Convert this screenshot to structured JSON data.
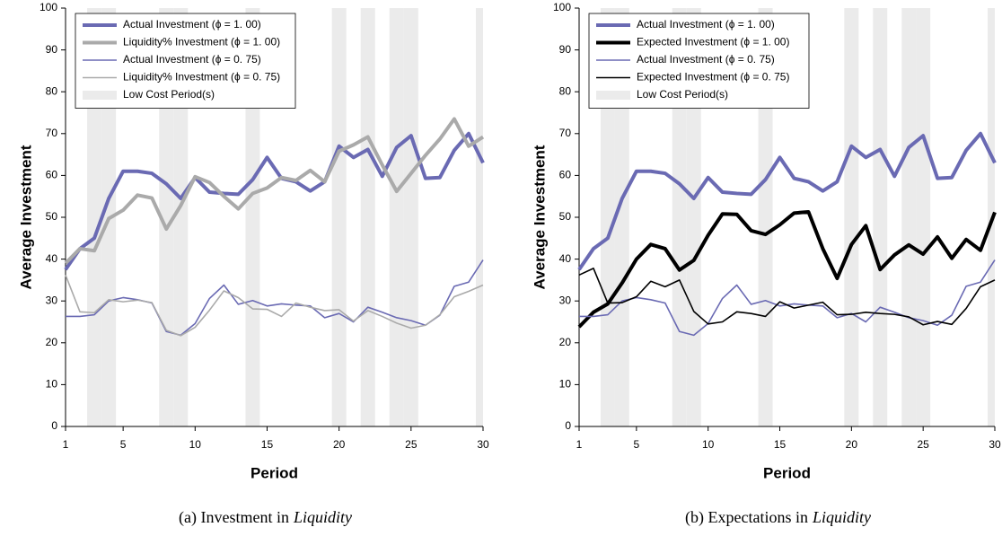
{
  "chart_data": [
    {
      "type": "line",
      "caption": {
        "text": "(a) Investment in",
        "emphasis": "Liquidity"
      },
      "x_label": "Period",
      "y_label": "Average Investment",
      "x": [
        1,
        2,
        3,
        4,
        5,
        6,
        7,
        8,
        9,
        10,
        11,
        12,
        13,
        14,
        15,
        16,
        17,
        18,
        19,
        20,
        21,
        22,
        23,
        24,
        25,
        26,
        27,
        28,
        29,
        30
      ],
      "xlim": [
        1,
        30
      ],
      "xticks": [
        1,
        5,
        10,
        15,
        20,
        25,
        30
      ],
      "ylim": [
        0,
        100
      ],
      "yticks": [
        0,
        10,
        20,
        30,
        40,
        50,
        60,
        70,
        80,
        90,
        100
      ],
      "legend": "upper left",
      "low_cost_label": "Low Cost Period(s)",
      "low_cost_color": "#ebebeb",
      "low_cost_periods": [
        3,
        4,
        8,
        9,
        14,
        20,
        22,
        24,
        25,
        30
      ],
      "series": [
        {
          "name": "Actual Investment (ϕ = 1. 00)",
          "color": "#6a6ab3",
          "line_width": 4,
          "values": [
            37.5,
            42.5,
            45,
            54.5,
            61,
            61,
            60.5,
            58,
            54.5,
            59.5,
            56,
            55.7,
            55.5,
            59,
            64.3,
            59.3,
            58.5,
            56.3,
            58.5,
            67,
            64.3,
            66.2,
            59.8,
            66.7,
            69.5,
            59.3,
            59.5,
            66,
            70,
            63
          ]
        },
        {
          "name": "Liquidity% Investment (ϕ = 1. 00)",
          "color": "#aaaaaa",
          "line_width": 4,
          "values": [
            39,
            42.5,
            42,
            49.7,
            51.7,
            55.3,
            54.6,
            47.2,
            52.8,
            59.7,
            58.3,
            55,
            52,
            55.7,
            57,
            59.5,
            58.8,
            61.2,
            58.5,
            65.8,
            67.3,
            69.2,
            62.5,
            56.2,
            60.5,
            64.8,
            68.7,
            73.5,
            67,
            69.2
          ]
        },
        {
          "name": "Actual Investment (ϕ = 0. 75)",
          "color": "#6a6ab3",
          "line_width": 1.6,
          "values": [
            26.3,
            26.3,
            26.7,
            30,
            30.8,
            30.3,
            29.5,
            22.7,
            21.8,
            24.6,
            30.6,
            33.8,
            29.2,
            30.1,
            28.8,
            29.3,
            29,
            28.8,
            26,
            27,
            25,
            28.5,
            27.3,
            26,
            25.3,
            24.2,
            26.6,
            33.5,
            34.5,
            39.8
          ]
        },
        {
          "name": "Liquidity% Investment (ϕ = 0. 75)",
          "color": "#aaaaaa",
          "line_width": 1.6,
          "values": [
            36.2,
            27.4,
            27.2,
            30.3,
            29.8,
            30.2,
            29.6,
            23,
            21.7,
            23.7,
            27.8,
            32.4,
            30.8,
            28.1,
            28,
            26.3,
            29.5,
            28.5,
            27.7,
            27.9,
            25.2,
            27.7,
            26.3,
            24.7,
            23.5,
            24.2,
            26.7,
            31,
            32.3,
            33.8
          ]
        }
      ]
    },
    {
      "type": "line",
      "caption": {
        "text": "(b) Expectations in",
        "emphasis": "Liquidity"
      },
      "x_label": "Period",
      "y_label": "Average Investment",
      "x": [
        1,
        2,
        3,
        4,
        5,
        6,
        7,
        8,
        9,
        10,
        11,
        12,
        13,
        14,
        15,
        16,
        17,
        18,
        19,
        20,
        21,
        22,
        23,
        24,
        25,
        26,
        27,
        28,
        29,
        30
      ],
      "xlim": [
        1,
        30
      ],
      "xticks": [
        1,
        5,
        10,
        15,
        20,
        25,
        30
      ],
      "ylim": [
        0,
        100
      ],
      "yticks": [
        0,
        10,
        20,
        30,
        40,
        50,
        60,
        70,
        80,
        90,
        100
      ],
      "legend": "upper left",
      "low_cost_label": "Low Cost Period(s)",
      "low_cost_color": "#ebebeb",
      "low_cost_periods": [
        3,
        4,
        8,
        9,
        14,
        20,
        22,
        24,
        25,
        30
      ],
      "series": [
        {
          "name": "Actual Investment (ϕ = 1. 00)",
          "color": "#6a6ab3",
          "line_width": 4,
          "values": [
            37.5,
            42.5,
            45,
            54.5,
            61,
            61,
            60.5,
            58,
            54.5,
            59.5,
            56,
            55.7,
            55.5,
            59,
            64.3,
            59.3,
            58.5,
            56.3,
            58.5,
            67,
            64.3,
            66.2,
            59.8,
            66.7,
            69.5,
            59.3,
            59.5,
            66,
            70,
            63
          ]
        },
        {
          "name": "Expected Investment (ϕ = 1. 00)",
          "color": "#000000",
          "line_width": 4,
          "values": [
            23.8,
            27.3,
            29.3,
            34.3,
            40,
            43.5,
            42.5,
            37.4,
            39.7,
            45.7,
            50.8,
            50.7,
            46.8,
            45.9,
            48.2,
            51,
            51.3,
            42.5,
            35.4,
            43.5,
            48,
            37.5,
            41,
            43.4,
            41.2,
            45.3,
            40.2,
            44.7,
            42.1,
            51.2
          ]
        },
        {
          "name": "Actual Investment (ϕ = 0. 75)",
          "color": "#6a6ab3",
          "line_width": 1.6,
          "values": [
            26.3,
            26.3,
            26.7,
            30,
            30.8,
            30.3,
            29.5,
            22.7,
            21.8,
            24.6,
            30.6,
            33.8,
            29.2,
            30.1,
            28.8,
            29.3,
            29,
            28.8,
            26,
            27,
            25,
            28.5,
            27.3,
            26,
            25.3,
            24.2,
            26.6,
            33.5,
            34.5,
            39.8
          ]
        },
        {
          "name": "Expected Investment (ϕ = 0. 75)",
          "color": "#000000",
          "line_width": 1.6,
          "values": [
            36.2,
            37.8,
            29.5,
            29.6,
            31,
            34.7,
            33.4,
            35,
            27.5,
            24.5,
            25,
            27.4,
            27,
            26.3,
            29.8,
            28.3,
            29,
            29.7,
            26.7,
            26.8,
            27.3,
            27,
            26.8,
            26.2,
            24.3,
            25.1,
            24.4,
            28.2,
            33.4,
            35
          ]
        }
      ]
    }
  ]
}
